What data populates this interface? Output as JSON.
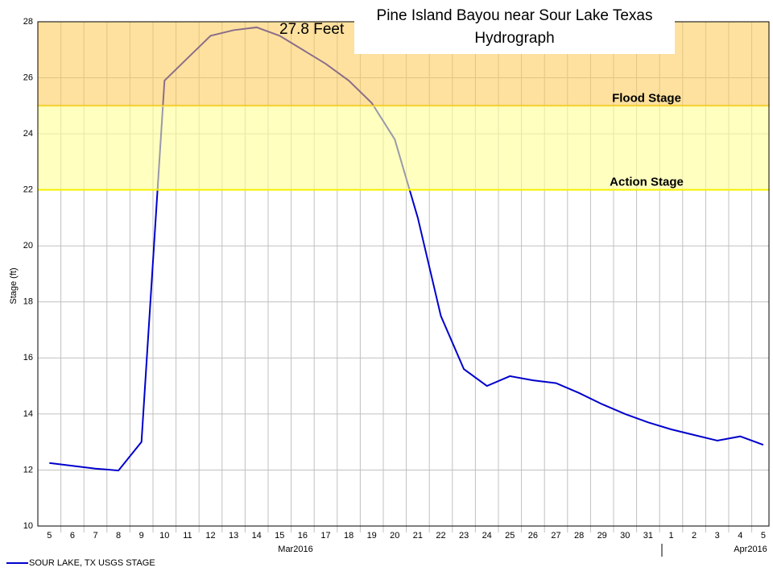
{
  "chart_data": {
    "type": "line",
    "title": "Pine Island Bayou near Sour Lake Texas",
    "subtitle": "Hydrograph",
    "y_label": "Stage (ft)",
    "annotation": "27.8 Feet",
    "categories": [
      "5",
      "6",
      "7",
      "8",
      "9",
      "10",
      "11",
      "12",
      "13",
      "14",
      "15",
      "16",
      "17",
      "18",
      "19",
      "20",
      "21",
      "22",
      "23",
      "24",
      "25",
      "26",
      "27",
      "28",
      "29",
      "30",
      "31",
      "1",
      "2",
      "3",
      "4",
      "5"
    ],
    "x_groups": [
      "Mar2016",
      "Apr2016"
    ],
    "series": [
      {
        "name": "SOUR LAKE, TX USGS STAGE",
        "color": "#0000cc",
        "values": [
          12.25,
          12.15,
          12.05,
          11.98,
          13.0,
          25.9,
          26.7,
          27.5,
          27.7,
          27.8,
          27.5,
          27.0,
          26.5,
          25.9,
          25.1,
          23.8,
          21.0,
          17.5,
          15.6,
          15.0,
          15.35,
          15.2,
          15.1,
          14.75,
          14.35,
          14.0,
          13.7,
          13.45,
          13.25,
          13.05,
          13.2,
          12.9
        ]
      }
    ],
    "thresholds": [
      {
        "label": "Flood Stage",
        "value": 25,
        "color": "#f0c000",
        "fill": "rgba(253,200,80,0.55)"
      },
      {
        "label": "Action Stage",
        "value": 22,
        "color": "#f5f000",
        "fill": "rgba(255,255,150,0.6)"
      }
    ],
    "ylim": [
      10,
      28
    ],
    "yticks": [
      10,
      12,
      14,
      16,
      18,
      20,
      22,
      24,
      26,
      28
    ],
    "grid": true
  }
}
